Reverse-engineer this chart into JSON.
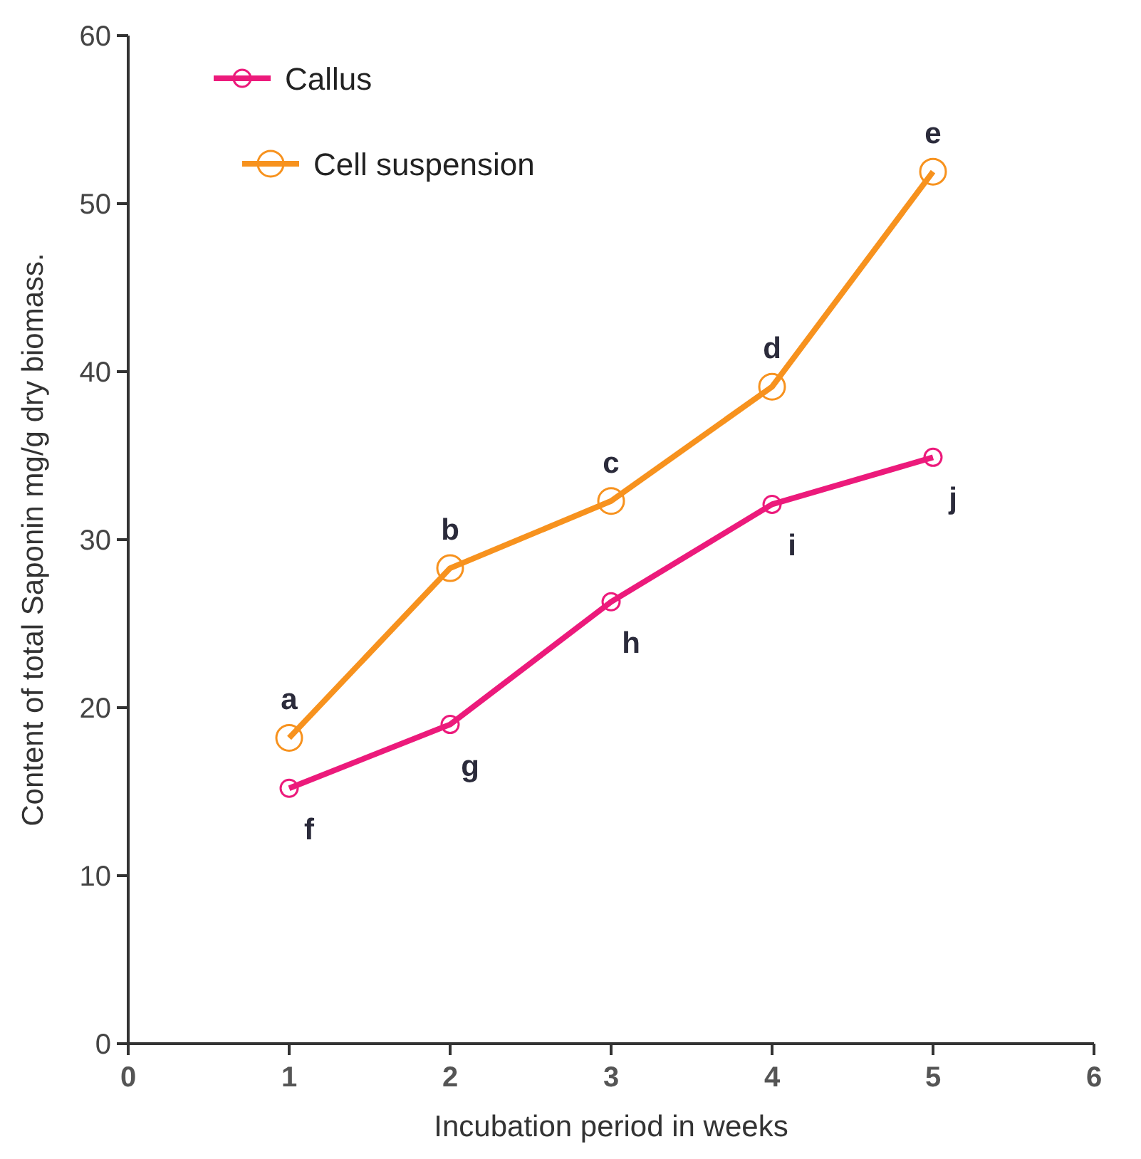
{
  "chart_data": {
    "type": "line",
    "xlabel": "Incubation period in weeks",
    "ylabel": "Content of total Saponin mg/g dry biomass.",
    "x": [
      1,
      2,
      3,
      4,
      5
    ],
    "series": [
      {
        "name": "Callus",
        "color": "#ec1a7b",
        "values": [
          15.2,
          19.0,
          26.3,
          32.1,
          34.9
        ],
        "marker": "circle",
        "value_labels": [
          "f",
          "g",
          "h",
          "i",
          "j"
        ]
      },
      {
        "name": "Cell suspension",
        "color": "#f7921e",
        "values": [
          18.2,
          28.3,
          32.3,
          39.1,
          51.9
        ],
        "marker": "circle",
        "value_labels": [
          "a",
          "b",
          "c",
          "d",
          "e"
        ]
      }
    ],
    "xlim": [
      0,
      6
    ],
    "xticks": [
      0,
      1,
      2,
      3,
      4,
      5,
      6
    ],
    "ylim": [
      0,
      60
    ],
    "yticks": [
      0,
      10,
      20,
      30,
      40,
      50,
      60
    ],
    "legend": "top left",
    "grid": false
  }
}
